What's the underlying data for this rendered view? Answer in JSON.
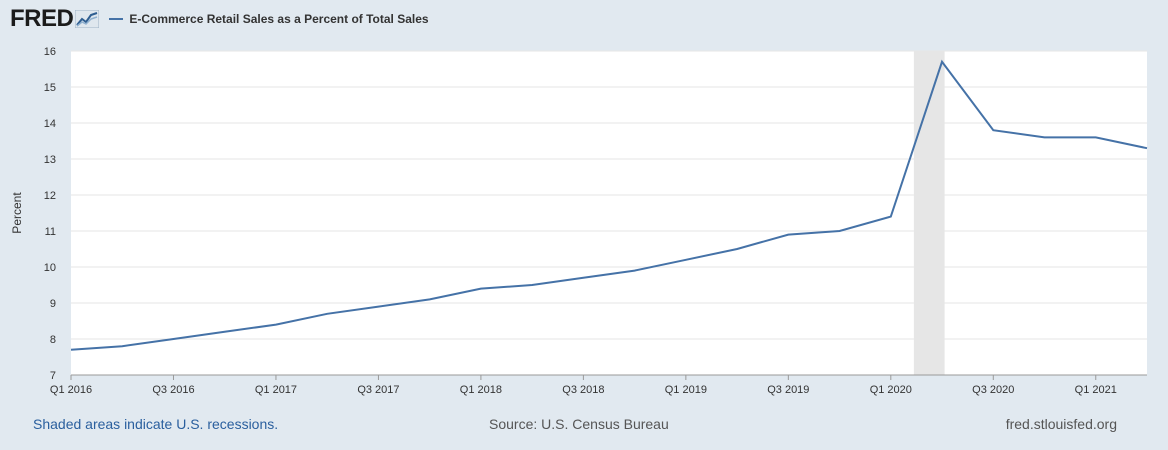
{
  "logo": {
    "text": "FRED"
  },
  "chart_data": {
    "type": "line",
    "title": "",
    "xlabel": "",
    "ylabel": "Percent",
    "ylim": [
      7,
      16
    ],
    "yticks": [
      7,
      8,
      9,
      10,
      11,
      12,
      13,
      14,
      15,
      16
    ],
    "grid": true,
    "legend_placement": "top-left",
    "x_tick_labels": [
      "Q1 2016",
      "Q3 2016",
      "Q1 2017",
      "Q3 2017",
      "Q1 2018",
      "Q3 2018",
      "Q1 2019",
      "Q3 2019",
      "Q1 2020",
      "Q3 2020",
      "Q1 2021"
    ],
    "x": [
      "Q1 2016",
      "Q2 2016",
      "Q3 2016",
      "Q4 2016",
      "Q1 2017",
      "Q2 2017",
      "Q3 2017",
      "Q4 2017",
      "Q1 2018",
      "Q2 2018",
      "Q3 2018",
      "Q4 2018",
      "Q1 2019",
      "Q2 2019",
      "Q3 2019",
      "Q4 2019",
      "Q1 2020",
      "Q2 2020",
      "Q3 2020",
      "Q4 2020",
      "Q1 2021",
      "Q2 2021"
    ],
    "series": [
      {
        "name": "E-Commerce Retail Sales as a Percent of Total Sales",
        "color": "#4572a7",
        "values": [
          7.7,
          7.8,
          8.0,
          8.2,
          8.4,
          8.7,
          8.9,
          9.1,
          9.4,
          9.5,
          9.7,
          9.9,
          10.2,
          10.5,
          10.9,
          11.0,
          11.4,
          15.7,
          13.8,
          13.6,
          13.6,
          13.3
        ]
      }
    ],
    "recession_shading": {
      "start": "Q1 2020",
      "end": "Q2 2020",
      "color": "#e6e6e6"
    }
  },
  "footer": {
    "note": "Shaded areas indicate U.S. recessions.",
    "source": "Source: U.S. Census Bureau",
    "site": "fred.stlouisfed.org"
  }
}
